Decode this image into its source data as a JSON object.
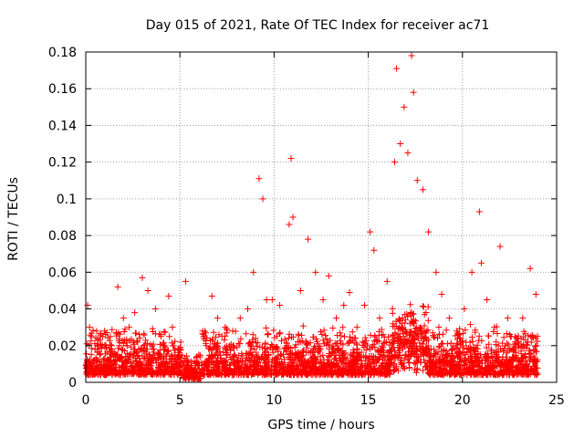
{
  "chart_data": {
    "type": "scatter",
    "title": "Day 015 of 2021, Rate Of TEC Index for receiver ac71",
    "xlabel": "GPS time / hours",
    "ylabel": "ROTI / TECUs",
    "xlim": [
      0,
      25
    ],
    "ylim": [
      0,
      0.18
    ],
    "xticks": [
      0,
      5,
      10,
      15,
      20,
      25
    ],
    "yticks": [
      0,
      0.02,
      0.04,
      0.06,
      0.08,
      0.1,
      0.12,
      0.14,
      0.16,
      0.18
    ],
    "xtick_labels": [
      "0",
      "5",
      "10",
      "15",
      "20",
      "25"
    ],
    "ytick_labels": [
      "0",
      "0.02",
      "0.04",
      "0.06",
      "0.08",
      "0.1",
      "0.12",
      "0.14",
      "0.16",
      "0.18"
    ],
    "marker": "+",
    "color": "#ff0000",
    "grid": true,
    "series": [
      {
        "name": "ROTI",
        "x": [
          0.1,
          0.2,
          0.3,
          0.5,
          0.8,
          1.0,
          1.3,
          1.7,
          2.0,
          2.3,
          2.6,
          3.0,
          3.3,
          3.7,
          4.0,
          4.4,
          4.6,
          5.0,
          5.3,
          5.6,
          6.0,
          6.3,
          6.7,
          7.0,
          7.4,
          7.8,
          8.2,
          8.6,
          8.9,
          9.2,
          9.4,
          9.6,
          9.9,
          10.3,
          10.8,
          10.9,
          11.0,
          11.4,
          11.8,
          12.2,
          12.6,
          12.9,
          13.3,
          13.7,
          14.0,
          14.4,
          14.8,
          15.1,
          15.3,
          15.6,
          16.0,
          16.4,
          16.5,
          16.7,
          16.9,
          17.1,
          17.3,
          17.4,
          17.6,
          17.9,
          18.2,
          18.6,
          18.9,
          19.3,
          19.7,
          20.1,
          20.5,
          20.9,
          21.0,
          21.3,
          21.7,
          22.0,
          22.4,
          22.8,
          23.2,
          23.6,
          23.9
        ],
        "y": [
          0.042,
          0.03,
          0.025,
          0.018,
          0.02,
          0.028,
          0.025,
          0.052,
          0.035,
          0.03,
          0.038,
          0.057,
          0.05,
          0.04,
          0.025,
          0.047,
          0.03,
          0.012,
          0.055,
          0.008,
          0.015,
          0.025,
          0.047,
          0.035,
          0.03,
          0.028,
          0.035,
          0.04,
          0.06,
          0.111,
          0.1,
          0.045,
          0.045,
          0.042,
          0.086,
          0.122,
          0.09,
          0.05,
          0.078,
          0.06,
          0.045,
          0.058,
          0.035,
          0.042,
          0.049,
          0.03,
          0.042,
          0.082,
          0.072,
          0.035,
          0.055,
          0.12,
          0.171,
          0.13,
          0.15,
          0.125,
          0.178,
          0.158,
          0.11,
          0.105,
          0.082,
          0.06,
          0.048,
          0.035,
          0.028,
          0.04,
          0.06,
          0.093,
          0.065,
          0.045,
          0.03,
          0.074,
          0.035,
          0.025,
          0.035,
          0.062,
          0.048
        ],
        "point_count": 77
      }
    ]
  }
}
